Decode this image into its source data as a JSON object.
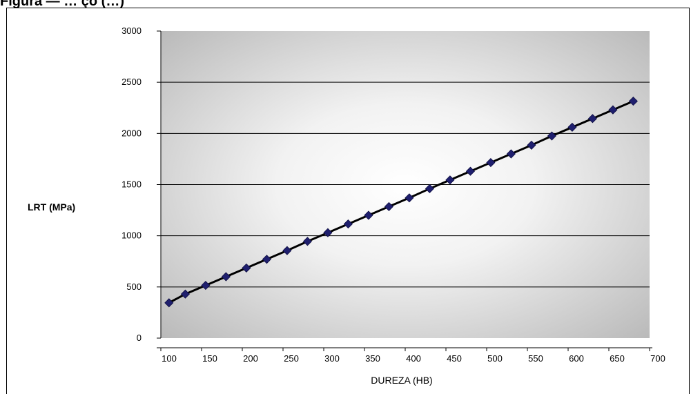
{
  "caption": "Figura — … ço (…)",
  "chart_data": {
    "type": "line",
    "title": "",
    "xlabel": "DUREZA (HB)",
    "ylabel": "LRT (MPa)",
    "xlim": [
      100,
      700
    ],
    "ylim": [
      0,
      3000
    ],
    "xticks": [
      100,
      150,
      200,
      250,
      300,
      350,
      400,
      450,
      500,
      550,
      600,
      650,
      700
    ],
    "yticks": [
      0,
      500,
      1000,
      1500,
      2000,
      2500,
      3000
    ],
    "grid": "horizontal",
    "legend": "none",
    "colors": {
      "marker": "#1f1f6e",
      "line": "#000000",
      "plot_bg_edge": "#b4b4b4",
      "plot_bg_center": "#ffffff"
    },
    "series": [
      {
        "x": [
          110,
          130,
          155,
          180,
          205,
          230,
          255,
          280,
          305,
          330,
          355,
          380,
          405,
          430,
          455,
          480,
          505,
          530,
          555,
          580,
          605,
          630,
          655,
          680
        ],
        "y": [
          345,
          430,
          515,
          600,
          685,
          770,
          855,
          945,
          1030,
          1115,
          1200,
          1285,
          1370,
          1460,
          1545,
          1630,
          1715,
          1800,
          1885,
          1975,
          2060,
          2145,
          2230,
          2315
        ]
      }
    ]
  }
}
